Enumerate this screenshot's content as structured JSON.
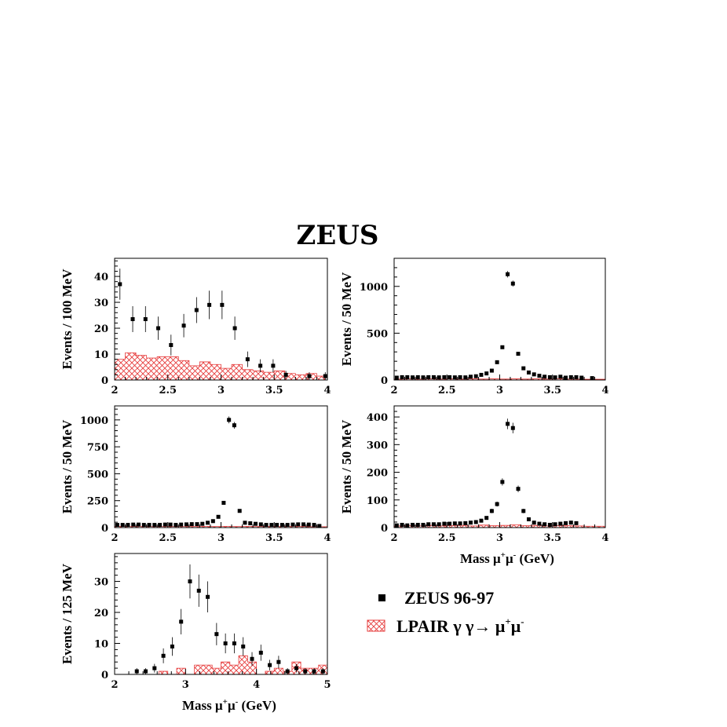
{
  "figure_title": "ZEUS",
  "legend": {
    "data_label": "ZEUS 96-97",
    "mc_label_parts": [
      "LPAIR γ γ→ μ",
      "+",
      "μ",
      "-"
    ]
  },
  "colors": {
    "mc_hatch": "#e63b3b",
    "data": "#000000",
    "frame": "#000000"
  },
  "chart_data": [
    {
      "type": "scatter",
      "ylabel": "Events / 100 MeV",
      "xlabel_parts": [],
      "xlim": [
        2,
        4
      ],
      "ylim": [
        0,
        47
      ],
      "xticks": [
        "2",
        "2.5",
        "3",
        "3.5",
        "4"
      ],
      "xtick_values": [
        2,
        2.5,
        3,
        3.5,
        4
      ],
      "yticks": [
        "0",
        "10",
        "20",
        "30",
        "40"
      ],
      "ytick_values": [
        0,
        10,
        20,
        30,
        40
      ],
      "data": {
        "x": [
          2.05,
          2.17,
          2.29,
          2.41,
          2.53,
          2.65,
          2.77,
          2.89,
          3.01,
          3.13,
          3.25,
          3.37,
          3.49,
          3.61,
          3.83,
          3.98
        ],
        "y": [
          37,
          23.5,
          23.5,
          20,
          13.5,
          21,
          27,
          29,
          29,
          20,
          8,
          5.5,
          5.5,
          2,
          1.5,
          1.5
        ],
        "err": [
          6,
          5,
          5,
          4.5,
          4,
          4.5,
          5,
          5.5,
          5.5,
          4.5,
          3,
          2.5,
          2.5,
          1.5,
          1.5,
          1.5
        ]
      },
      "mc": {
        "edges": [
          2.0,
          2.1,
          2.2,
          2.3,
          2.4,
          2.5,
          2.6,
          2.7,
          2.8,
          2.9,
          3.0,
          3.1,
          3.2,
          3.3,
          3.4,
          3.5,
          3.6,
          3.7,
          3.8,
          3.9,
          4.0
        ],
        "values": [
          8,
          10.5,
          9.5,
          8.5,
          9,
          9,
          7.5,
          5.5,
          7,
          6,
          4.5,
          6,
          4,
          3.5,
          3,
          3.5,
          2.5,
          2,
          2.5,
          1.5
        ]
      }
    },
    {
      "type": "scatter",
      "ylabel": "Events / 50 MeV",
      "xlabel_parts": [],
      "xlim": [
        2,
        4
      ],
      "ylim": [
        0,
        1300
      ],
      "xticks": [
        "2",
        "2.5",
        "3",
        "3.5",
        "4"
      ],
      "xtick_values": [
        2,
        2.5,
        3,
        3.5,
        4
      ],
      "yticks": [
        "0",
        "500",
        "1000"
      ],
      "ytick_values": [
        0,
        500,
        1000
      ],
      "data": {
        "x": [
          2.025,
          2.075,
          2.125,
          2.175,
          2.225,
          2.275,
          2.325,
          2.375,
          2.425,
          2.475,
          2.525,
          2.575,
          2.625,
          2.675,
          2.725,
          2.775,
          2.825,
          2.875,
          2.925,
          2.975,
          3.025,
          3.075,
          3.125,
          3.175,
          3.225,
          3.275,
          3.325,
          3.375,
          3.425,
          3.475,
          3.525,
          3.575,
          3.625,
          3.675,
          3.725,
          3.775,
          3.875
        ],
        "y": [
          25,
          30,
          30,
          28,
          30,
          28,
          30,
          30,
          28,
          30,
          30,
          28,
          30,
          28,
          35,
          40,
          55,
          70,
          100,
          190,
          350,
          1130,
          1030,
          280,
          125,
          80,
          60,
          45,
          35,
          30,
          28,
          35,
          25,
          30,
          30,
          25,
          20
        ],
        "err": [
          5,
          5,
          5,
          5,
          5,
          5,
          5,
          5,
          5,
          5,
          5,
          5,
          5,
          5,
          6,
          6,
          7,
          8,
          10,
          14,
          19,
          34,
          32,
          17,
          11,
          9,
          8,
          7,
          6,
          5,
          5,
          6,
          5,
          5,
          5,
          5,
          4
        ]
      },
      "mc": {
        "edges": [
          2.0,
          2.1,
          2.2,
          2.3,
          2.4,
          2.5,
          2.6,
          2.7,
          2.8,
          2.9,
          3.0,
          3.1,
          3.2,
          3.3,
          3.4,
          3.5,
          3.6,
          3.7,
          3.8,
          3.9,
          4.0
        ],
        "values": [
          10,
          12,
          10,
          12,
          10,
          12,
          10,
          12,
          10,
          12,
          10,
          12,
          10,
          12,
          10,
          12,
          10,
          10,
          8,
          8
        ]
      }
    },
    {
      "type": "scatter",
      "ylabel": "Events / 50 MeV",
      "xlabel_parts": [],
      "xlim": [
        2,
        4
      ],
      "ylim": [
        0,
        1130
      ],
      "xticks": [
        "2",
        "2.5",
        "3",
        "3.5",
        "4"
      ],
      "xtick_values": [
        2,
        2.5,
        3,
        3.5,
        4
      ],
      "yticks": [
        "0",
        "250",
        "500",
        "750",
        "1000"
      ],
      "ytick_values": [
        0,
        250,
        500,
        750,
        1000
      ],
      "data": {
        "x": [
          2.025,
          2.075,
          2.125,
          2.175,
          2.225,
          2.275,
          2.325,
          2.375,
          2.425,
          2.475,
          2.525,
          2.575,
          2.625,
          2.675,
          2.725,
          2.775,
          2.825,
          2.875,
          2.925,
          2.975,
          3.025,
          3.075,
          3.125,
          3.175,
          3.225,
          3.275,
          3.325,
          3.375,
          3.425,
          3.475,
          3.525,
          3.575,
          3.625,
          3.675,
          3.725,
          3.775,
          3.825,
          3.875,
          3.925
        ],
        "y": [
          25,
          25,
          25,
          28,
          28,
          25,
          25,
          25,
          25,
          28,
          28,
          25,
          28,
          30,
          32,
          32,
          35,
          45,
          60,
          100,
          230,
          1000,
          950,
          155,
          45,
          40,
          35,
          30,
          25,
          25,
          25,
          25,
          25,
          28,
          30,
          30,
          28,
          25,
          15
        ],
        "err": [
          5,
          5,
          5,
          5,
          5,
          5,
          5,
          5,
          5,
          5,
          5,
          5,
          5,
          5,
          6,
          6,
          6,
          7,
          8,
          10,
          15,
          32,
          31,
          12,
          7,
          6,
          6,
          5,
          5,
          5,
          5,
          5,
          5,
          5,
          5,
          5,
          5,
          5,
          4
        ]
      },
      "mc": {
        "edges": [
          2.0,
          2.1,
          2.2,
          2.3,
          2.4,
          2.5,
          2.6,
          2.7,
          2.8,
          2.9,
          3.0,
          3.1,
          3.2,
          3.3,
          3.4,
          3.5,
          3.6,
          3.7,
          3.8,
          3.9,
          4.0
        ],
        "values": [
          12,
          10,
          12,
          10,
          12,
          10,
          12,
          10,
          12,
          10,
          12,
          10,
          12,
          10,
          12,
          10,
          12,
          10,
          8,
          8
        ]
      }
    },
    {
      "type": "scatter",
      "ylabel": "Events / 50 MeV",
      "xlabel_parts": [
        "Mass μ",
        "+",
        "μ",
        "-",
        " (GeV)"
      ],
      "xlim": [
        2,
        4
      ],
      "ylim": [
        0,
        440
      ],
      "xticks": [
        "2",
        "2.5",
        "3",
        "3.5",
        "4"
      ],
      "xtick_values": [
        2,
        2.5,
        3,
        3.5,
        4
      ],
      "yticks": [
        "0",
        "100",
        "200",
        "300",
        "400"
      ],
      "ytick_values": [
        0,
        100,
        200,
        300,
        400
      ],
      "data": {
        "x": [
          2.025,
          2.075,
          2.125,
          2.175,
          2.225,
          2.275,
          2.325,
          2.375,
          2.425,
          2.475,
          2.525,
          2.575,
          2.625,
          2.675,
          2.725,
          2.775,
          2.825,
          2.875,
          2.925,
          2.975,
          3.025,
          3.075,
          3.125,
          3.175,
          3.225,
          3.275,
          3.325,
          3.375,
          3.425,
          3.475,
          3.525,
          3.575,
          3.625,
          3.675,
          3.725
        ],
        "y": [
          8,
          10,
          8,
          10,
          10,
          10,
          12,
          12,
          12,
          14,
          14,
          15,
          15,
          16,
          18,
          20,
          25,
          35,
          60,
          85,
          165,
          375,
          360,
          140,
          60,
          30,
          18,
          14,
          12,
          10,
          12,
          14,
          16,
          18,
          16
        ],
        "err": [
          3,
          3,
          3,
          3,
          3,
          3,
          3,
          3,
          3,
          4,
          4,
          4,
          4,
          4,
          4,
          4,
          5,
          6,
          8,
          9,
          13,
          19,
          19,
          12,
          8,
          5,
          4,
          4,
          3,
          3,
          3,
          4,
          4,
          4,
          4
        ]
      },
      "mc": {
        "edges": [
          2.0,
          2.1,
          2.2,
          2.3,
          2.4,
          2.5,
          2.6,
          2.7,
          2.8,
          2.9,
          3.0,
          3.1,
          3.2,
          3.3,
          3.4,
          3.5,
          3.6,
          3.7,
          3.8,
          3.9,
          4.0
        ],
        "values": [
          6,
          7,
          6,
          8,
          6,
          7,
          8,
          6,
          9,
          7,
          8,
          10,
          7,
          8,
          6,
          7,
          7,
          6,
          5,
          5
        ]
      }
    },
    {
      "type": "scatter",
      "ylabel": "Events / 125 MeV",
      "xlabel_parts": [
        "Mass μ",
        "+",
        "μ",
        "-",
        " (GeV)"
      ],
      "xlim": [
        2,
        5
      ],
      "ylim": [
        0,
        39
      ],
      "xticks": [
        "2",
        "3",
        "4",
        "5"
      ],
      "xtick_values": [
        2,
        3,
        4,
        5
      ],
      "yticks": [
        "0",
        "10",
        "20",
        "30"
      ],
      "ytick_values": [
        0,
        10,
        20,
        30
      ],
      "data": {
        "x": [
          2.3125,
          2.4375,
          2.5625,
          2.6875,
          2.8125,
          2.9375,
          3.0625,
          3.1875,
          3.3125,
          3.4375,
          3.5625,
          3.6875,
          3.8125,
          3.9375,
          4.0625,
          4.1875,
          4.3125,
          4.4375,
          4.5625,
          4.6875,
          4.8125,
          4.9375
        ],
        "y": [
          1,
          1,
          2,
          6,
          9,
          17,
          30,
          27,
          25,
          13,
          10,
          10,
          9,
          5,
          7,
          3,
          4,
          1,
          2,
          1,
          1,
          1
        ],
        "err": [
          1,
          1,
          1.4,
          2.4,
          3,
          4.1,
          5.5,
          5.2,
          5,
          3.6,
          3.2,
          3.2,
          3,
          2.2,
          2.6,
          1.7,
          2,
          1,
          1.4,
          1,
          1,
          1
        ]
      },
      "mc": {
        "edges": [
          2.0,
          2.5,
          2.625,
          2.75,
          2.875,
          3.0,
          3.125,
          3.25,
          3.375,
          3.5,
          3.625,
          3.75,
          3.875,
          4.0,
          4.125,
          4.25,
          4.375,
          4.5,
          4.625,
          4.75,
          4.875,
          5.0
        ],
        "values": [
          0,
          0,
          1,
          0,
          2,
          0,
          3,
          3,
          2,
          4,
          3,
          6,
          4,
          0,
          1,
          2,
          1,
          4,
          2,
          2,
          3
        ]
      }
    }
  ]
}
